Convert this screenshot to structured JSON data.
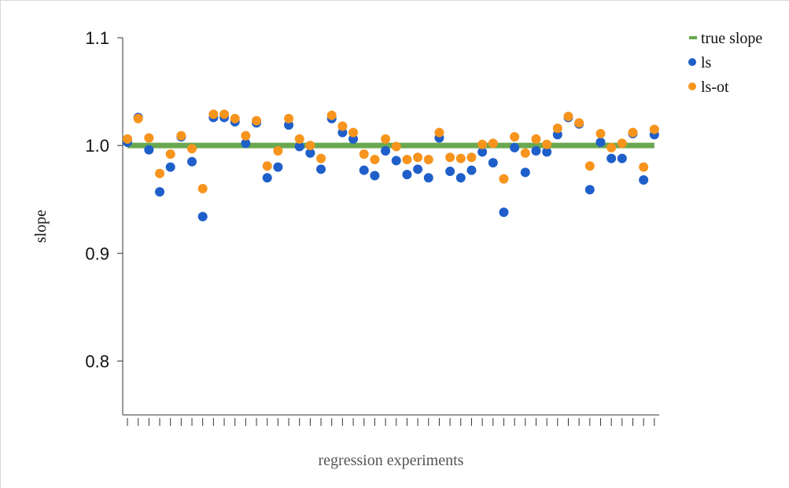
{
  "chart_data": {
    "type": "scatter",
    "title": "",
    "xlabel": "regression experiments",
    "ylabel": "slope",
    "ylim": [
      0.75,
      1.1
    ],
    "yticks": [
      0.8,
      0.9,
      1.0,
      1.1
    ],
    "ytick_labels": [
      "0.8",
      "0.9",
      "1.0",
      "1.1"
    ],
    "x": [
      1,
      2,
      3,
      4,
      5,
      6,
      7,
      8,
      9,
      10,
      11,
      12,
      13,
      14,
      15,
      16,
      17,
      18,
      19,
      20,
      21,
      22,
      23,
      24,
      25,
      26,
      27,
      28,
      29,
      30,
      31,
      32,
      33,
      34,
      35,
      36,
      37,
      38,
      39,
      40,
      41,
      42,
      43,
      44,
      45,
      46,
      47,
      48,
      49,
      50
    ],
    "reference_line": {
      "name": "true slope",
      "value": 1.0,
      "color": "#6aa84f"
    },
    "series": [
      {
        "name": "ls",
        "color": "#1f5fc9",
        "values": [
          1.003,
          1.026,
          0.996,
          0.957,
          0.98,
          1.008,
          0.985,
          0.934,
          1.026,
          1.026,
          1.022,
          1.002,
          1.021,
          0.97,
          0.98,
          1.019,
          0.999,
          0.993,
          0.978,
          1.025,
          1.012,
          1.006,
          0.977,
          0.972,
          0.995,
          0.986,
          0.973,
          0.978,
          0.97,
          1.007,
          0.976,
          0.97,
          0.977,
          0.994,
          0.984,
          0.938,
          0.998,
          0.975,
          0.995,
          0.994,
          1.01,
          1.026,
          1.02,
          0.959,
          1.003,
          0.988,
          0.988,
          1.011,
          0.968,
          1.01
        ]
      },
      {
        "name": "ls-ot",
        "color": "#f7941d",
        "values": [
          1.006,
          1.025,
          1.007,
          0.974,
          0.992,
          1.009,
          0.997,
          0.96,
          1.029,
          1.029,
          1.025,
          1.009,
          1.023,
          0.981,
          0.995,
          1.025,
          1.006,
          1.0,
          0.988,
          1.028,
          1.018,
          1.012,
          0.992,
          0.987,
          1.006,
          0.999,
          0.987,
          0.989,
          0.987,
          1.012,
          0.989,
          0.988,
          0.989,
          1.001,
          1.002,
          0.969,
          1.008,
          0.993,
          1.006,
          1.001,
          1.016,
          1.027,
          1.021,
          0.981,
          1.011,
          0.998,
          1.002,
          1.012,
          0.98,
          1.015
        ]
      }
    ],
    "legend_position": "top-right",
    "grid": false
  }
}
